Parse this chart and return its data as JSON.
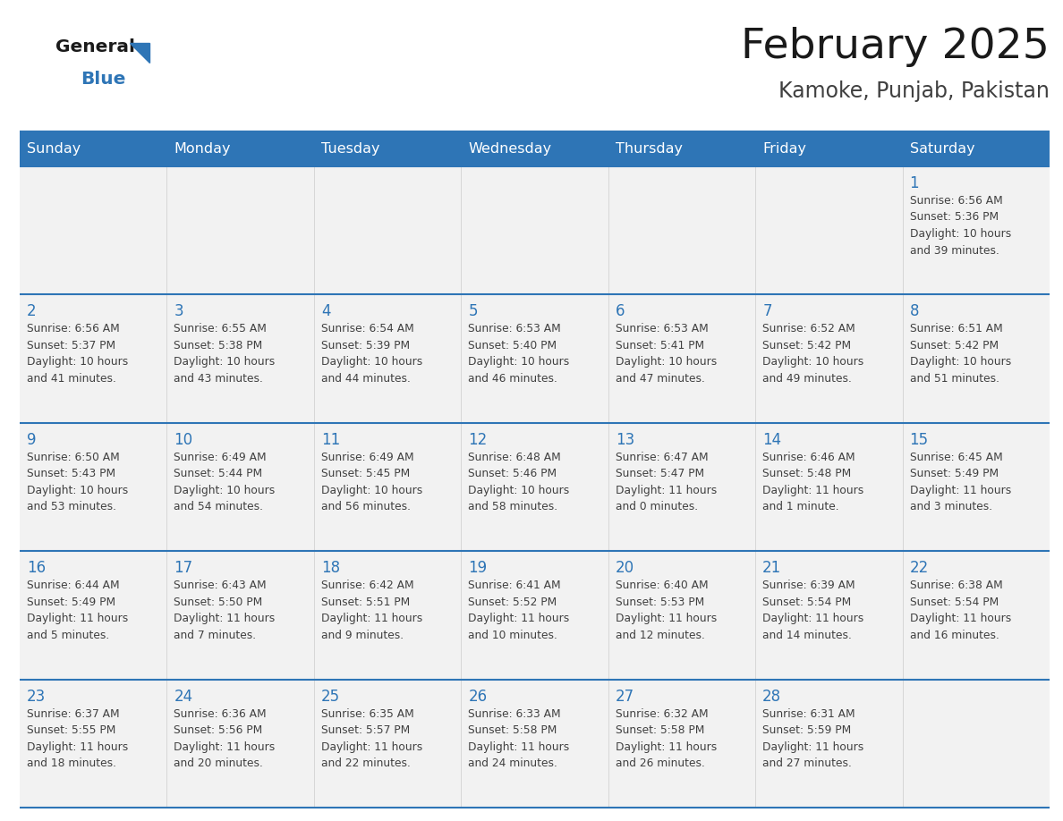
{
  "title": "February 2025",
  "subtitle": "Kamoke, Punjab, Pakistan",
  "days_of_week": [
    "Sunday",
    "Monday",
    "Tuesday",
    "Wednesday",
    "Thursday",
    "Friday",
    "Saturday"
  ],
  "header_bg": "#2E75B6",
  "header_text": "#FFFFFF",
  "cell_bg": "#F2F2F2",
  "border_color": "#2E75B6",
  "day_num_color": "#2E75B6",
  "cell_text_color": "#404040",
  "title_color": "#1a1a1a",
  "subtitle_color": "#404040",
  "logo_general_color": "#1a1a1a",
  "logo_blue_color": "#2E75B6",
  "weeks": [
    [
      {
        "day": null,
        "info": ""
      },
      {
        "day": null,
        "info": ""
      },
      {
        "day": null,
        "info": ""
      },
      {
        "day": null,
        "info": ""
      },
      {
        "day": null,
        "info": ""
      },
      {
        "day": null,
        "info": ""
      },
      {
        "day": 1,
        "info": "Sunrise: 6:56 AM\nSunset: 5:36 PM\nDaylight: 10 hours\nand 39 minutes."
      }
    ],
    [
      {
        "day": 2,
        "info": "Sunrise: 6:56 AM\nSunset: 5:37 PM\nDaylight: 10 hours\nand 41 minutes."
      },
      {
        "day": 3,
        "info": "Sunrise: 6:55 AM\nSunset: 5:38 PM\nDaylight: 10 hours\nand 43 minutes."
      },
      {
        "day": 4,
        "info": "Sunrise: 6:54 AM\nSunset: 5:39 PM\nDaylight: 10 hours\nand 44 minutes."
      },
      {
        "day": 5,
        "info": "Sunrise: 6:53 AM\nSunset: 5:40 PM\nDaylight: 10 hours\nand 46 minutes."
      },
      {
        "day": 6,
        "info": "Sunrise: 6:53 AM\nSunset: 5:41 PM\nDaylight: 10 hours\nand 47 minutes."
      },
      {
        "day": 7,
        "info": "Sunrise: 6:52 AM\nSunset: 5:42 PM\nDaylight: 10 hours\nand 49 minutes."
      },
      {
        "day": 8,
        "info": "Sunrise: 6:51 AM\nSunset: 5:42 PM\nDaylight: 10 hours\nand 51 minutes."
      }
    ],
    [
      {
        "day": 9,
        "info": "Sunrise: 6:50 AM\nSunset: 5:43 PM\nDaylight: 10 hours\nand 53 minutes."
      },
      {
        "day": 10,
        "info": "Sunrise: 6:49 AM\nSunset: 5:44 PM\nDaylight: 10 hours\nand 54 minutes."
      },
      {
        "day": 11,
        "info": "Sunrise: 6:49 AM\nSunset: 5:45 PM\nDaylight: 10 hours\nand 56 minutes."
      },
      {
        "day": 12,
        "info": "Sunrise: 6:48 AM\nSunset: 5:46 PM\nDaylight: 10 hours\nand 58 minutes."
      },
      {
        "day": 13,
        "info": "Sunrise: 6:47 AM\nSunset: 5:47 PM\nDaylight: 11 hours\nand 0 minutes."
      },
      {
        "day": 14,
        "info": "Sunrise: 6:46 AM\nSunset: 5:48 PM\nDaylight: 11 hours\nand 1 minute."
      },
      {
        "day": 15,
        "info": "Sunrise: 6:45 AM\nSunset: 5:49 PM\nDaylight: 11 hours\nand 3 minutes."
      }
    ],
    [
      {
        "day": 16,
        "info": "Sunrise: 6:44 AM\nSunset: 5:49 PM\nDaylight: 11 hours\nand 5 minutes."
      },
      {
        "day": 17,
        "info": "Sunrise: 6:43 AM\nSunset: 5:50 PM\nDaylight: 11 hours\nand 7 minutes."
      },
      {
        "day": 18,
        "info": "Sunrise: 6:42 AM\nSunset: 5:51 PM\nDaylight: 11 hours\nand 9 minutes."
      },
      {
        "day": 19,
        "info": "Sunrise: 6:41 AM\nSunset: 5:52 PM\nDaylight: 11 hours\nand 10 minutes."
      },
      {
        "day": 20,
        "info": "Sunrise: 6:40 AM\nSunset: 5:53 PM\nDaylight: 11 hours\nand 12 minutes."
      },
      {
        "day": 21,
        "info": "Sunrise: 6:39 AM\nSunset: 5:54 PM\nDaylight: 11 hours\nand 14 minutes."
      },
      {
        "day": 22,
        "info": "Sunrise: 6:38 AM\nSunset: 5:54 PM\nDaylight: 11 hours\nand 16 minutes."
      }
    ],
    [
      {
        "day": 23,
        "info": "Sunrise: 6:37 AM\nSunset: 5:55 PM\nDaylight: 11 hours\nand 18 minutes."
      },
      {
        "day": 24,
        "info": "Sunrise: 6:36 AM\nSunset: 5:56 PM\nDaylight: 11 hours\nand 20 minutes."
      },
      {
        "day": 25,
        "info": "Sunrise: 6:35 AM\nSunset: 5:57 PM\nDaylight: 11 hours\nand 22 minutes."
      },
      {
        "day": 26,
        "info": "Sunrise: 6:33 AM\nSunset: 5:58 PM\nDaylight: 11 hours\nand 24 minutes."
      },
      {
        "day": 27,
        "info": "Sunrise: 6:32 AM\nSunset: 5:58 PM\nDaylight: 11 hours\nand 26 minutes."
      },
      {
        "day": 28,
        "info": "Sunrise: 6:31 AM\nSunset: 5:59 PM\nDaylight: 11 hours\nand 27 minutes."
      },
      {
        "day": null,
        "info": ""
      }
    ]
  ]
}
